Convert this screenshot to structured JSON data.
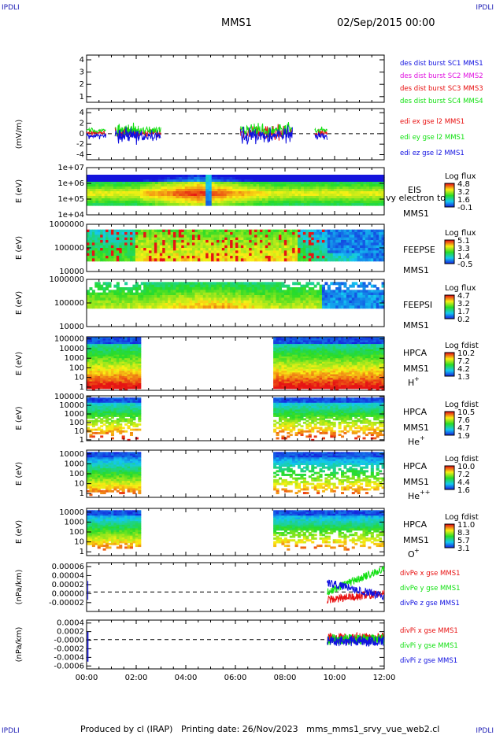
{
  "corner_labels": {
    "top_left": "IPDLI",
    "top_right": "IPDLI",
    "bottom_left": "IPDLI",
    "bottom_right": "IPDLI"
  },
  "header": {
    "mission": "MMS1",
    "datetime": "02/Sep/2015 00:00"
  },
  "footer": {
    "text": "Produced by cl (IRAP)   Printing date: 26/Nov/2023   mms_mms1_srvy_vue_web2.cl"
  },
  "colors": {
    "red": "#e81010",
    "green": "#10e010",
    "blue": "#1010e0",
    "magenta": "#e010e0",
    "navy": "#1c1cb4"
  },
  "chart_data": [
    {
      "id": "des",
      "type": "line",
      "ylabel": "",
      "yticks": [
        "4",
        "3",
        "2",
        "1"
      ],
      "series": [
        {
          "name": "des dist burst SC1 MMS1",
          "color": "#1010e0"
        },
        {
          "name": "des dist burst SC2 MMS2",
          "color": "#e010e0"
        },
        {
          "name": "des dist burst SC3 MMS3",
          "color": "#e81010"
        },
        {
          "name": "des dist burst SC4 MMS4",
          "color": "#10e010"
        }
      ]
    },
    {
      "id": "edi",
      "type": "line",
      "ylabel": "(mV/m)",
      "yticks": [
        "4",
        "2",
        "0",
        "-2",
        "-4"
      ],
      "ylim": [
        -4,
        4
      ],
      "series": [
        {
          "name": "edi ex gse l2 MMS1",
          "color": "#e81010"
        },
        {
          "name": "edi ey gse l2 MMS1",
          "color": "#10e010"
        },
        {
          "name": "edi ez gse l2 MMS1",
          "color": "#1010e0"
        }
      ]
    },
    {
      "id": "eis",
      "type": "heatmap",
      "ylabel": "E (eV)",
      "yticks": [
        "1e+07",
        "1e+06",
        "1e+05",
        "1e+04"
      ],
      "instrument": [
        "EIS",
        "vy electron to",
        "MMS1"
      ],
      "colorbar": {
        "title": "Log flux",
        "values": [
          "4.8",
          "3.2",
          "1.6",
          "-0.1"
        ]
      }
    },
    {
      "id": "feepse",
      "type": "heatmap",
      "ylabel": "E (eV)",
      "yticks": [
        "1000000",
        "100000",
        "10000"
      ],
      "instrument": [
        "FEEPSE",
        "MMS1"
      ],
      "colorbar": {
        "title": "Log flux",
        "values": [
          "5.1",
          "3.3",
          "1.4",
          "-0.5"
        ]
      }
    },
    {
      "id": "feepsi",
      "type": "heatmap",
      "ylabel": "E (eV)",
      "yticks": [
        "1000000",
        "100000",
        "10000"
      ],
      "instrument": [
        "FEEPSI",
        "MMS1"
      ],
      "colorbar": {
        "title": "Log flux",
        "values": [
          "4.7",
          "3.2",
          "1.7",
          "0.2"
        ]
      }
    },
    {
      "id": "hpca_h",
      "type": "heatmap",
      "ylabel": "E (eV)",
      "yticks": [
        "100000",
        "10000",
        "1000",
        "100",
        "10",
        "1"
      ],
      "instrument": [
        "HPCA",
        "MMS1",
        "H"
      ],
      "species_sup": "+",
      "colorbar": {
        "title": "Log fdist",
        "values": [
          "10.2",
          "7.2",
          "4.2",
          "1.3"
        ]
      }
    },
    {
      "id": "hpca_he",
      "type": "heatmap",
      "ylabel": "E (eV)",
      "yticks": [
        "100000",
        "10000",
        "1000",
        "100",
        "10",
        "1"
      ],
      "instrument": [
        "HPCA",
        "MMS1",
        "He"
      ],
      "species_sup": "+",
      "colorbar": {
        "title": "Log fdist",
        "values": [
          "10.5",
          "7.6",
          "4.7",
          "1.9"
        ]
      }
    },
    {
      "id": "hpca_he2",
      "type": "heatmap",
      "ylabel": "E (eV)",
      "yticks": [
        "10000",
        "1000",
        "100",
        "10",
        "1"
      ],
      "instrument": [
        "HPCA",
        "MMS1",
        "He"
      ],
      "species_sup": "++",
      "colorbar": {
        "title": "Log fdist",
        "values": [
          "10.0",
          "7.2",
          "4.4",
          "1.6"
        ]
      }
    },
    {
      "id": "hpca_o",
      "type": "heatmap",
      "ylabel": "E (eV)",
      "yticks": [
        "10000",
        "1000",
        "100",
        "10",
        "1"
      ],
      "instrument": [
        "HPCA",
        "MMS1",
        "O"
      ],
      "species_sup": "+",
      "colorbar": {
        "title": "Log fdist",
        "values": [
          "11.0",
          "8.3",
          "5.7",
          "3.1"
        ]
      }
    },
    {
      "id": "divpe",
      "type": "line",
      "ylabel": "(nPa/km)",
      "yticks": [
        "0.00006",
        "0.00004",
        "0.00002",
        "0.00000",
        "-0.00002"
      ],
      "ylim": [
        -3e-05,
        6e-05
      ],
      "series": [
        {
          "name": "divPe x gse MMS1",
          "color": "#e81010"
        },
        {
          "name": "divPe y gse MMS1",
          "color": "#10e010"
        },
        {
          "name": "divPe z gse MMS1",
          "color": "#1010e0"
        }
      ]
    },
    {
      "id": "divpi",
      "type": "line",
      "ylabel": "(nPa/km)",
      "yticks": [
        "0.0004",
        "0.0002",
        "-0.0000",
        "-0.0002",
        "-0.0004",
        "-0.0006"
      ],
      "ylim": [
        -0.0006,
        0.0004
      ],
      "series": [
        {
          "name": "divPi x gse MMS1",
          "color": "#e81010"
        },
        {
          "name": "divPi y gse MMS1",
          "color": "#10e010"
        },
        {
          "name": "divPi z gse MMS1",
          "color": "#1010e0"
        }
      ]
    }
  ],
  "xaxis": {
    "ticks": [
      "00:00",
      "02:00",
      "04:00",
      "06:00",
      "08:00",
      "10:00",
      "12:00"
    ],
    "range_hours": [
      0,
      12
    ]
  }
}
